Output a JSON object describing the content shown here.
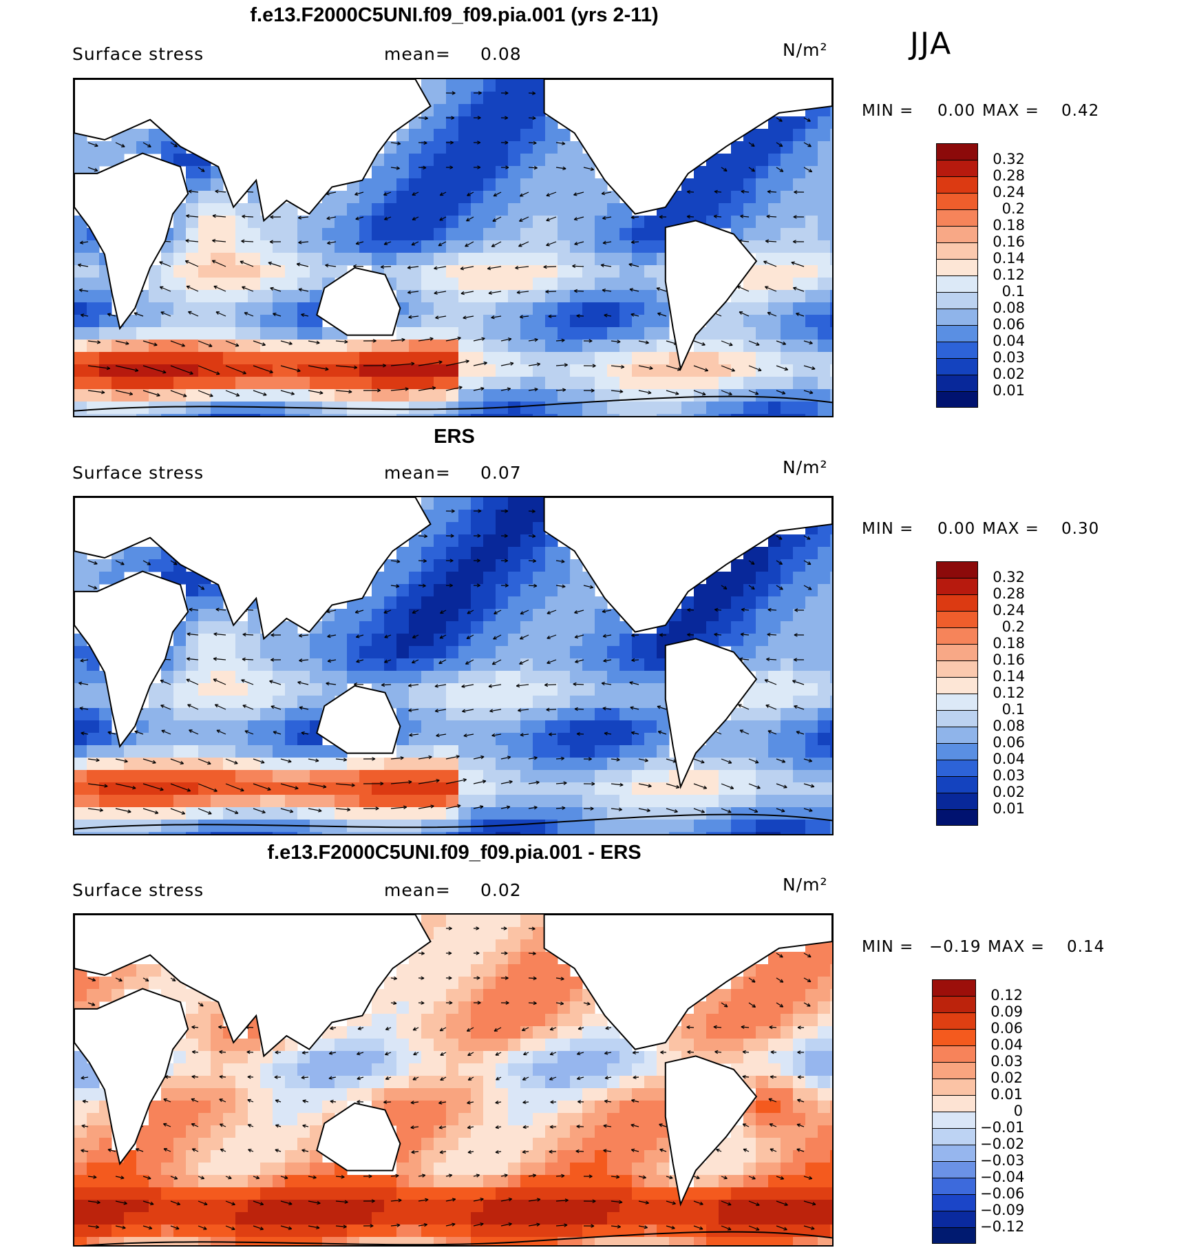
{
  "season": "JJA",
  "panels": [
    {
      "title": "f.e13.F2000C5UNI.f09_f09.pia.001 (yrs 2-11)",
      "variable": "Surface stress",
      "mean_label": "mean=",
      "mean_value": "0.08",
      "units": "N/m²",
      "min_label": "MIN =",
      "min_value": "0.00",
      "max_label": "MAX =",
      "max_value": "0.42",
      "colorbar_ticks": [
        "0.32",
        "0.28",
        "0.24",
        "0.2",
        "0.18",
        "0.16",
        "0.14",
        "0.12",
        "0.1",
        "0.08",
        "0.06",
        "0.04",
        "0.03",
        "0.02",
        "0.01"
      ],
      "colorbar_colors": [
        "#8c0a0a",
        "#b71a0e",
        "#dc3a12",
        "#ef5e2c",
        "#f6845a",
        "#f8a886",
        "#fbc9ae",
        "#fde6d6",
        "#dce9f7",
        "#bcd2f0",
        "#8fb4ea",
        "#5a8fe3",
        "#2d63d8",
        "#1443bf",
        "#08289a",
        "#001270"
      ]
    },
    {
      "title": "ERS",
      "variable": "Surface stress",
      "mean_label": "mean=",
      "mean_value": "0.07",
      "units": "N/m²",
      "min_label": "MIN =",
      "min_value": "0.00",
      "max_label": "MAX =",
      "max_value": "0.30",
      "colorbar_ticks": [
        "0.32",
        "0.28",
        "0.24",
        "0.2",
        "0.18",
        "0.16",
        "0.14",
        "0.12",
        "0.1",
        "0.08",
        "0.06",
        "0.04",
        "0.03",
        "0.02",
        "0.01"
      ],
      "colorbar_colors": [
        "#8c0a0a",
        "#b71a0e",
        "#dc3a12",
        "#ef5e2c",
        "#f6845a",
        "#f8a886",
        "#fbc9ae",
        "#fde6d6",
        "#dce9f7",
        "#bcd2f0",
        "#8fb4ea",
        "#5a8fe3",
        "#2d63d8",
        "#1443bf",
        "#08289a",
        "#001270"
      ]
    },
    {
      "title": "f.e13.F2000C5UNI.f09_f09.pia.001 - ERS",
      "variable": "Surface stress",
      "mean_label": "mean=",
      "mean_value": "0.02",
      "units": "N/m²",
      "min_label": "MIN =",
      "min_value": "−0.19",
      "max_label": "MAX =",
      "max_value": "0.14",
      "colorbar_ticks": [
        "0.12",
        "0.09",
        "0.06",
        "0.04",
        "0.03",
        "0.02",
        "0.01",
        "0",
        "−0.01",
        "−0.02",
        "−0.03",
        "−0.04",
        "−0.06",
        "−0.09",
        "−0.12"
      ],
      "colorbar_colors": [
        "#9c0f0a",
        "#bc230c",
        "#df3f12",
        "#f45a1e",
        "#f7835a",
        "#f9a47f",
        "#fbc3a5",
        "#fde3d3",
        "#dae6f7",
        "#bdd3f3",
        "#96b6ee",
        "#6b92e6",
        "#3d6adc",
        "#1b45c8",
        "#0a2a9f",
        "#001a70"
      ]
    }
  ],
  "chart_data": [
    {
      "type": "heatmap",
      "title": "f.e13.F2000C5UNI.f09_f09.pia.001 (yrs 2-11)",
      "subtitle": "Surface stress",
      "units": "N/m²",
      "mean": 0.08,
      "min": 0.0,
      "max": 0.42,
      "color_levels": [
        0.01,
        0.02,
        0.03,
        0.04,
        0.06,
        0.08,
        0.1,
        0.12,
        0.14,
        0.16,
        0.18,
        0.2,
        0.24,
        0.28,
        0.32
      ],
      "overlay": "wind stress vectors"
    },
    {
      "type": "heatmap",
      "title": "ERS",
      "subtitle": "Surface stress",
      "units": "N/m²",
      "mean": 0.07,
      "min": 0.0,
      "max": 0.3,
      "color_levels": [
        0.01,
        0.02,
        0.03,
        0.04,
        0.06,
        0.08,
        0.1,
        0.12,
        0.14,
        0.16,
        0.18,
        0.2,
        0.24,
        0.28,
        0.32
      ],
      "overlay": "wind stress vectors"
    },
    {
      "type": "heatmap",
      "title": "f.e13.F2000C5UNI.f09_f09.pia.001 - ERS",
      "subtitle": "Surface stress",
      "units": "N/m²",
      "mean": 0.02,
      "min": -0.19,
      "max": 0.14,
      "color_levels": [
        -0.12,
        -0.09,
        -0.06,
        -0.04,
        -0.03,
        -0.02,
        -0.01,
        0,
        0.01,
        0.02,
        0.03,
        0.04,
        0.06,
        0.09,
        0.12
      ],
      "overlay": "wind stress difference vectors"
    }
  ]
}
